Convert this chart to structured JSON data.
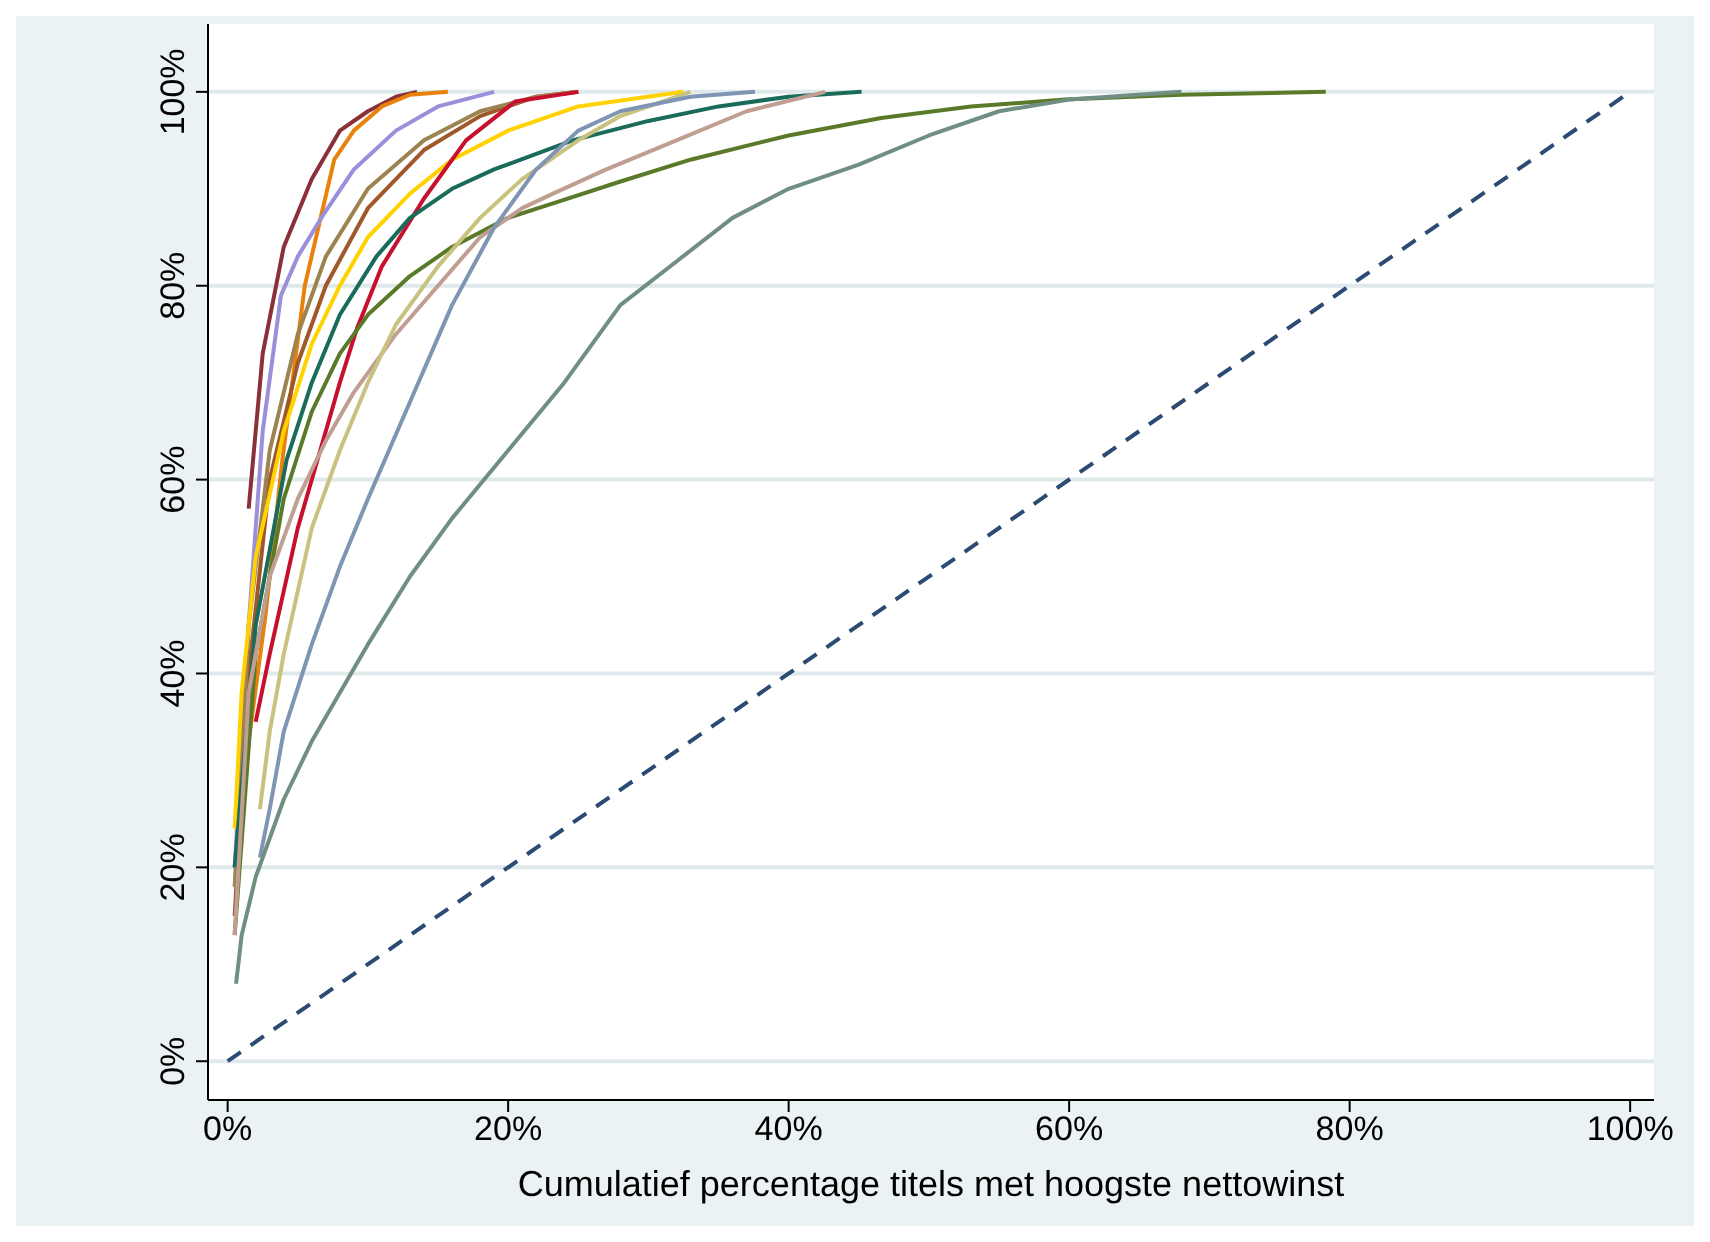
{
  "chart_data": {
    "type": "line",
    "xlabel": "Cumulatief percentage titels met hoogste nettowinst",
    "xlim": [
      -1.4,
      101.7
    ],
    "ylim": [
      -4,
      107
    ],
    "xticks": [
      {
        "value": 0,
        "label": "0%"
      },
      {
        "value": 20,
        "label": "20%"
      },
      {
        "value": 40,
        "label": "40%"
      },
      {
        "value": 60,
        "label": "60%"
      },
      {
        "value": 80,
        "label": "80%"
      },
      {
        "value": 100,
        "label": "100%"
      }
    ],
    "yticks": [
      {
        "value": 0,
        "label": "0%"
      },
      {
        "value": 20,
        "label": "20%"
      },
      {
        "value": 40,
        "label": "40%"
      },
      {
        "value": 60,
        "label": "60%"
      },
      {
        "value": 80,
        "label": "80%"
      },
      {
        "value": 100,
        "label": "100%"
      }
    ],
    "grid": "y",
    "marker": "none",
    "series": [
      {
        "color": "#8b3038",
        "x": [
          1.5,
          2.5,
          4,
          6,
          8,
          10,
          12,
          13.5
        ],
        "values": [
          57,
          73,
          84,
          91,
          96,
          98,
          99.5,
          100
        ]
      },
      {
        "color": "#e8820c",
        "x": [
          1.5,
          2.7,
          3.9,
          5.5,
          7.6,
          9,
          11,
          13,
          15.7
        ],
        "values": [
          33,
          46,
          62,
          80,
          93,
          96,
          98.5,
          99.7,
          100
        ]
      },
      {
        "color": "#9b8fdb",
        "x": [
          0.5,
          1.5,
          2.5,
          3.8,
          5,
          6.9,
          9,
          12,
          15,
          19
        ],
        "values": [
          20,
          45,
          65,
          79,
          83,
          87.5,
          92,
          96,
          98.5,
          100
        ]
      },
      {
        "color": "#a0582a",
        "x": [
          0.5,
          1.5,
          3,
          5,
          7,
          10,
          14,
          18,
          22,
          25
        ],
        "values": [
          15,
          40,
          60,
          72,
          80,
          88,
          94,
          97.5,
          99.5,
          100
        ]
      },
      {
        "color": "#9c8350",
        "x": [
          0.5,
          1.5,
          3,
          5,
          7,
          10,
          14,
          18,
          22,
          25
        ],
        "values": [
          18,
          45,
          63,
          75,
          83,
          90,
          95,
          98,
          99.5,
          100
        ]
      },
      {
        "color": "#ffd200",
        "x": [
          0.5,
          1,
          2,
          4,
          6,
          8,
          10,
          13,
          16,
          20,
          25,
          32.5
        ],
        "values": [
          24,
          38,
          52,
          65,
          74,
          80,
          85,
          89.5,
          93,
          96,
          98.5,
          100
        ]
      },
      {
        "color": "#c8102e",
        "x": [
          2,
          3,
          5,
          6.4,
          8,
          9.2,
          11,
          14,
          17,
          20.5,
          25
        ],
        "values": [
          35,
          42,
          55,
          62,
          70,
          75.5,
          82,
          89,
          95,
          99,
          100
        ]
      },
      {
        "color": "#1a6b5a",
        "x": [
          0.5,
          2,
          4.2,
          6,
          8,
          10.6,
          13,
          16,
          19,
          24.6,
          30,
          35,
          40,
          45.2
        ],
        "values": [
          20,
          45,
          62,
          70,
          77,
          83,
          87,
          90,
          92,
          95,
          97,
          98.5,
          99.5,
          100
        ]
      },
      {
        "color": "#5a7a2a",
        "x": [
          0.5,
          2,
          4,
          6,
          8,
          10,
          13,
          16,
          20,
          23.2,
          27.9,
          33,
          40,
          46.6,
          53,
          59.7,
          68,
          78.3
        ],
        "values": [
          13,
          42,
          58,
          67,
          73,
          77,
          81,
          84,
          87,
          88.5,
          90.7,
          93,
          95.5,
          97.3,
          98.5,
          99.2,
          99.7,
          100
        ]
      },
      {
        "color": "#c09e92",
        "x": [
          0.5,
          1.5,
          3,
          5,
          7,
          9,
          12,
          15,
          18,
          21,
          23.2,
          27,
          32,
          37,
          42.6
        ],
        "values": [
          13,
          38,
          50,
          58,
          64,
          69,
          75,
          80,
          85,
          88,
          89.5,
          92,
          95,
          98,
          100
        ]
      },
      {
        "color": "#c9c27f",
        "x": [
          2.3,
          3,
          4,
          6,
          8,
          10,
          12,
          15,
          18,
          21,
          25,
          28,
          33
        ],
        "values": [
          26,
          34,
          42,
          55,
          63,
          70,
          76,
          82,
          87,
          91,
          95,
          97.5,
          100
        ]
      },
      {
        "color": "#7f95b4",
        "x": [
          2.3,
          3,
          4,
          6,
          8,
          10,
          13,
          16,
          19,
          22,
          25,
          28,
          33,
          37.6
        ],
        "values": [
          21,
          26,
          34,
          43,
          51,
          58,
          68,
          78,
          86,
          92,
          96,
          98,
          99.5,
          100
        ]
      },
      {
        "color": "#708f82",
        "x": [
          0.6,
          1,
          2,
          4,
          6,
          8,
          10,
          13,
          16,
          20,
          24,
          28,
          32,
          36,
          40,
          45,
          50,
          55,
          60,
          68
        ],
        "values": [
          8,
          13,
          19,
          27,
          33,
          38,
          43,
          50,
          56,
          63,
          70,
          78,
          82.5,
          87,
          90,
          92.5,
          95.5,
          98,
          99.2,
          100
        ]
      },
      {
        "color": "#2b4b73",
        "line_style": "dashed",
        "x": [
          0,
          100
        ],
        "values": [
          0,
          100
        ]
      }
    ]
  }
}
